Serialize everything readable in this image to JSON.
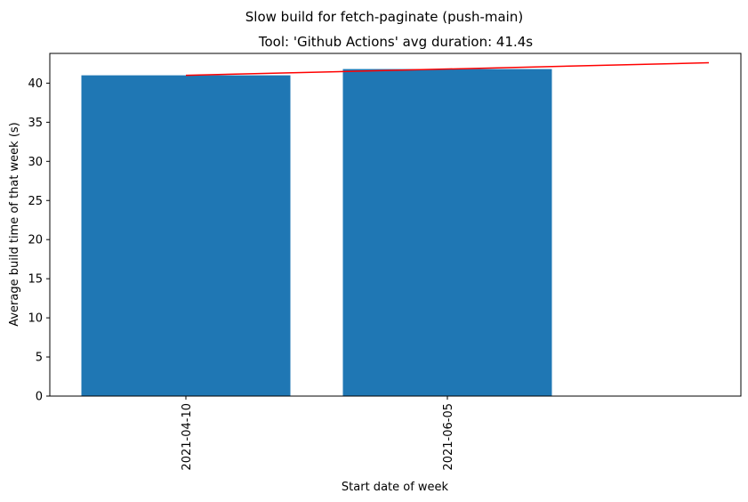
{
  "chart_data": {
    "type": "bar",
    "suptitle": "Slow build for fetch-paginate (push-main)",
    "title": "Tool: 'Github Actions' avg duration: 41.4s",
    "xlabel": "Start date of week",
    "ylabel": "Average build time of that week (s)",
    "categories": [
      "2021-04-10",
      "2021-06-05"
    ],
    "values": [
      41.0,
      41.8
    ],
    "bar_color": "#1f77b4",
    "trend_line": {
      "color": "#ff0000",
      "x": [
        0,
        2
      ],
      "y": [
        41.0,
        42.6
      ]
    },
    "ylim": [
      0,
      43.8
    ],
    "yticks": [
      0,
      5,
      10,
      15,
      20,
      25,
      30,
      35,
      40
    ],
    "grid": false,
    "legend": "none"
  }
}
